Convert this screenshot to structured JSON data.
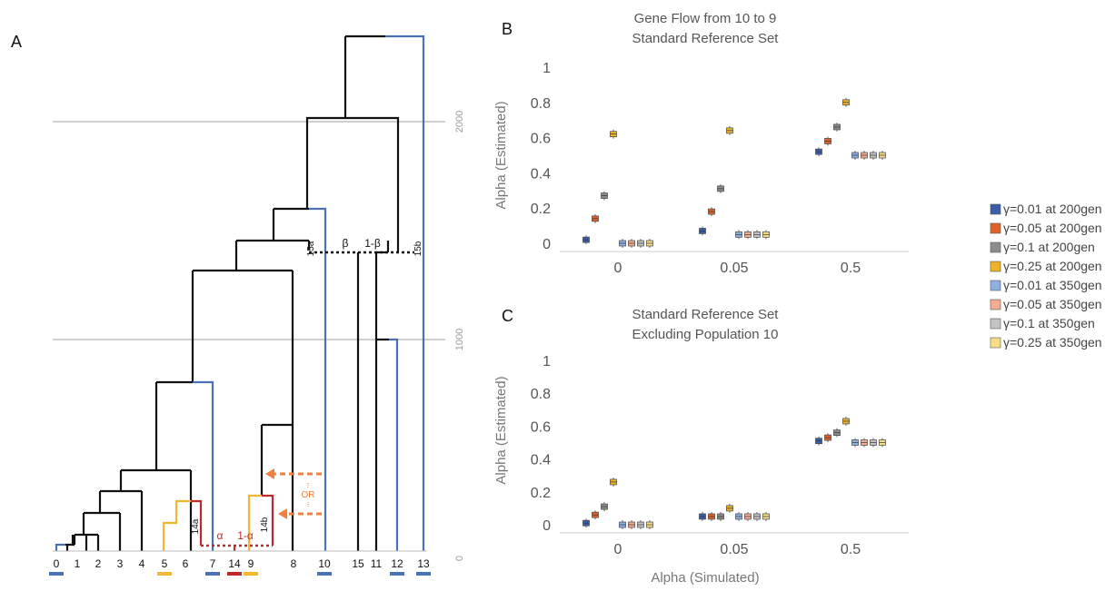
{
  "panel_labels": {
    "a": "A",
    "b": "B",
    "c": "C"
  },
  "colors": {
    "tree_black": "#111111",
    "tree_blue": "#4a72b8",
    "tree_red": "#c0282d",
    "tree_yellow": "#f5b52e",
    "tree_orange": "#f0803c",
    "gray_line": "#a0a0a0",
    "axis_text": "#777777"
  },
  "tree": {
    "time_ticks": [
      "0",
      "1000",
      "2000"
    ],
    "leaves": [
      {
        "label": "0",
        "marker": "blue"
      },
      {
        "label": "1"
      },
      {
        "label": "2"
      },
      {
        "label": "3"
      },
      {
        "label": "4"
      },
      {
        "label": "5",
        "marker": "yellow"
      },
      {
        "label": "6"
      },
      {
        "label": "7",
        "marker": "blue"
      },
      {
        "label": "14",
        "marker": "red"
      },
      {
        "label": "9",
        "marker": "yellow"
      },
      {
        "label": "8"
      },
      {
        "label": "10",
        "marker": "blue"
      },
      {
        "label": "15"
      },
      {
        "label": "11"
      },
      {
        "label": "12",
        "marker": "blue"
      },
      {
        "label": "13",
        "marker": "blue"
      }
    ],
    "annotations": {
      "alpha": "α",
      "one_minus_alpha": "1-α",
      "beta": "β",
      "one_minus_beta": "1-β",
      "node_14a": "14a",
      "node_14b": "14b",
      "node_15a": "15a",
      "node_15b": "15b",
      "or": "OR"
    }
  },
  "legend": [
    {
      "label": "γ=0.01 at 200gen",
      "color": "#3b5ea8"
    },
    {
      "label": "γ=0.05 at 200gen",
      "color": "#e0622b"
    },
    {
      "label": "γ=0.1 at 200gen",
      "color": "#8c8c8c"
    },
    {
      "label": "γ=0.25 at 200gen",
      "color": "#eeb32a"
    },
    {
      "label": "γ=0.01 at 350gen",
      "color": "#8fb0e3"
    },
    {
      "label": "γ=0.05 at 350gen",
      "color": "#f4ac92"
    },
    {
      "label": "γ=0.1 at 350gen",
      "color": "#c4c4c4"
    },
    {
      "label": "γ=0.25 at 350gen",
      "color": "#f8dc88"
    }
  ],
  "shared_xlabel": "Alpha (Simulated)",
  "chart_data": [
    {
      "type": "box",
      "title": [
        "Gene Flow from 10 to 9",
        "Standard Reference Set"
      ],
      "xlabel": "",
      "ylabel": "Alpha (Estimated)",
      "categories": [
        "0",
        "0.05",
        "0.5"
      ],
      "ylim": [
        0,
        1
      ],
      "yticks": [
        "0",
        "0.2",
        "0.4",
        "0.6",
        "0.8",
        "1"
      ],
      "series": [
        {
          "name": "γ=0.01 at 200gen",
          "medians": [
            0.02,
            0.07,
            0.52
          ]
        },
        {
          "name": "γ=0.05 at 200gen",
          "medians": [
            0.14,
            0.18,
            0.58
          ]
        },
        {
          "name": "γ=0.1 at 200gen",
          "medians": [
            0.27,
            0.31,
            0.66
          ]
        },
        {
          "name": "γ=0.25 at 200gen",
          "medians": [
            0.62,
            0.64,
            0.8
          ]
        },
        {
          "name": "γ=0.01 at 350gen",
          "medians": [
            0.0,
            0.05,
            0.5
          ]
        },
        {
          "name": "γ=0.05 at 350gen",
          "medians": [
            0.0,
            0.05,
            0.5
          ]
        },
        {
          "name": "γ=0.1 at 350gen",
          "medians": [
            0.0,
            0.05,
            0.5
          ]
        },
        {
          "name": "γ=0.25 at 350gen",
          "medians": [
            0.0,
            0.05,
            0.5
          ]
        }
      ]
    },
    {
      "type": "box",
      "title": [
        "Standard Reference Set",
        "Excluding Population 10"
      ],
      "xlabel": "Alpha (Simulated)",
      "ylabel": "Alpha (Estimated)",
      "categories": [
        "0",
        "0.05",
        "0.5"
      ],
      "ylim": [
        0,
        1
      ],
      "yticks": [
        "0",
        "0.2",
        "0.4",
        "0.6",
        "0.8",
        "1"
      ],
      "series": [
        {
          "name": "γ=0.01 at 200gen",
          "medians": [
            0.01,
            0.05,
            0.51
          ]
        },
        {
          "name": "γ=0.05 at 200gen",
          "medians": [
            0.06,
            0.05,
            0.53
          ]
        },
        {
          "name": "γ=0.1 at 200gen",
          "medians": [
            0.11,
            0.05,
            0.56
          ]
        },
        {
          "name": "γ=0.25 at 200gen",
          "medians": [
            0.26,
            0.1,
            0.63
          ]
        },
        {
          "name": "γ=0.01 at 350gen",
          "medians": [
            0.0,
            0.05,
            0.5
          ]
        },
        {
          "name": "γ=0.05 at 350gen",
          "medians": [
            0.0,
            0.05,
            0.5
          ]
        },
        {
          "name": "γ=0.1 at 350gen",
          "medians": [
            0.0,
            0.05,
            0.5
          ]
        },
        {
          "name": "γ=0.25 at 350gen",
          "medians": [
            0.0,
            0.05,
            0.5
          ]
        }
      ]
    }
  ]
}
